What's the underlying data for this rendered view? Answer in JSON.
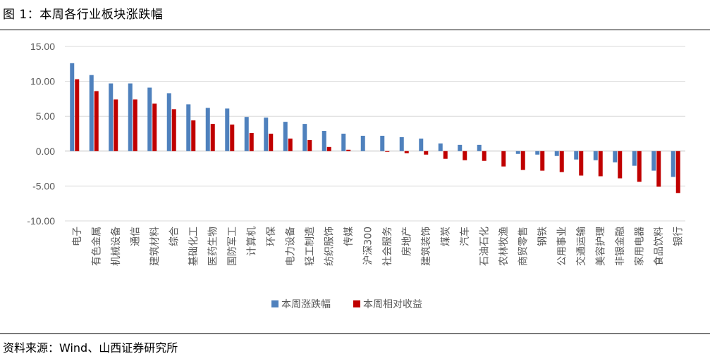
{
  "figure": {
    "title": "图 1：本周各行业板块涨跌幅",
    "source": "资料来源：Wind、山西证券研究所"
  },
  "chart_data": {
    "type": "bar",
    "categories": [
      "电子",
      "有色金属",
      "机械设备",
      "通信",
      "建筑材料",
      "综合",
      "基础化工",
      "医药生物",
      "国防军工",
      "计算机",
      "环保",
      "电力设备",
      "轻工制造",
      "纺织服饰",
      "传媒",
      "沪深300",
      "社会服务",
      "房地产",
      "建筑装饰",
      "煤炭",
      "汽车",
      "石油石化",
      "农林牧渔",
      "商贸零售",
      "钢铁",
      "公用事业",
      "交通运输",
      "美容护理",
      "非银金融",
      "家用电器",
      "食品饮料",
      "银行"
    ],
    "series": [
      {
        "name": "本周涨跌幅",
        "color": "#4F81BD",
        "values": [
          12.6,
          10.9,
          9.7,
          9.7,
          9.1,
          8.3,
          6.7,
          6.2,
          6.1,
          4.9,
          4.8,
          4.2,
          3.9,
          2.9,
          2.5,
          2.2,
          2.2,
          2.0,
          1.8,
          1.1,
          0.9,
          0.9,
          0.0,
          -0.4,
          -0.5,
          -0.7,
          -1.2,
          -1.3,
          -1.6,
          -2.1,
          -2.8,
          -3.7
        ]
      },
      {
        "name": "本周相对收益",
        "color": "#C00000",
        "values": [
          10.3,
          8.6,
          7.4,
          7.4,
          6.8,
          6.0,
          4.4,
          3.9,
          3.8,
          2.6,
          2.5,
          1.8,
          1.6,
          0.6,
          0.2,
          0.0,
          -0.1,
          -0.3,
          -0.5,
          -1.1,
          -1.3,
          -1.4,
          -2.2,
          -2.7,
          -2.8,
          -3.0,
          -3.5,
          -3.6,
          -3.9,
          -4.4,
          -5.1,
          -6.0
        ]
      }
    ],
    "yticks": [
      "15.00",
      "10.00",
      "5.00",
      "0.00",
      "-5.00",
      "-10.00"
    ],
    "ylim": [
      -10,
      15
    ],
    "grid": true,
    "legend_position": "bottom"
  }
}
